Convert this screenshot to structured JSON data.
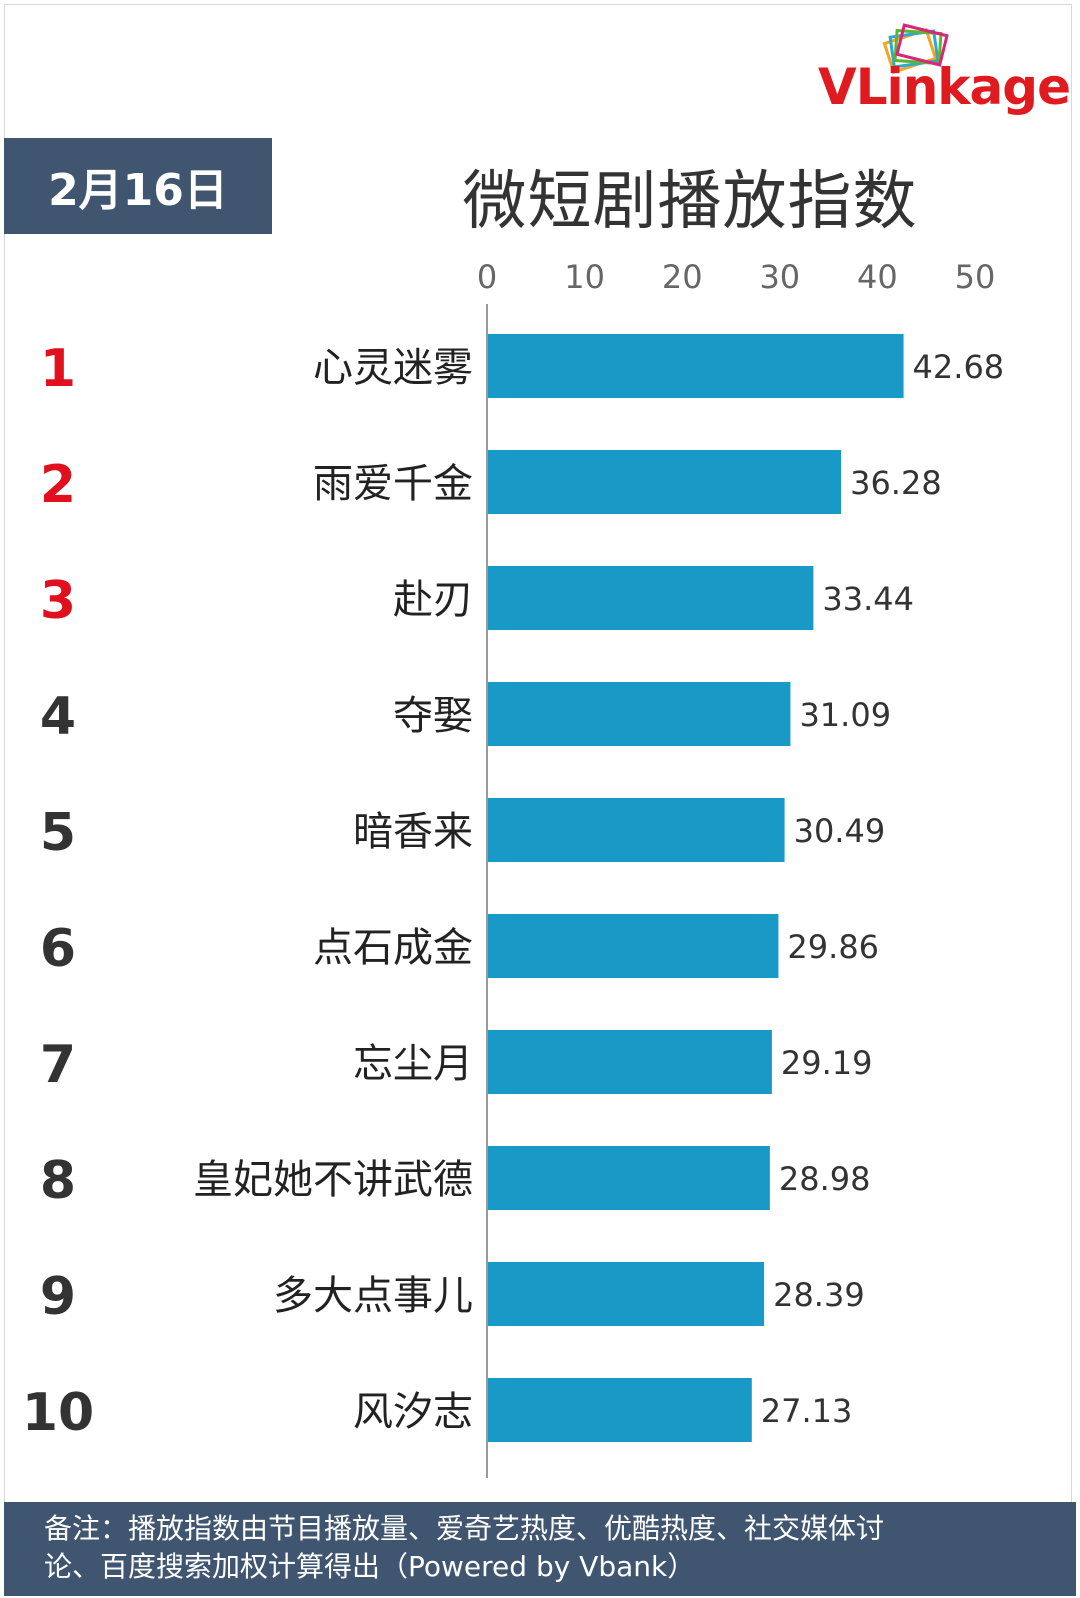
{
  "logo": {
    "text": "VLinkage"
  },
  "date_label": "2月16日",
  "chart_data": {
    "type": "bar",
    "orientation": "horizontal",
    "title": "微短剧播放指数",
    "xlim": [
      0,
      50
    ],
    "x_ticks": [
      "0",
      "10",
      "20",
      "30",
      "40",
      "50"
    ],
    "ranks": [
      "1",
      "2",
      "3",
      "4",
      "5",
      "6",
      "7",
      "8",
      "9",
      "10"
    ],
    "categories": [
      "心灵迷雾",
      "雨爱千金",
      "赴刃",
      "夺娶",
      "暗香来",
      "点石成金",
      "忘尘月",
      "皇妃她不讲武德",
      "多大点事儿",
      "风汐志"
    ],
    "values": [
      42.68,
      36.28,
      33.44,
      31.09,
      30.49,
      29.86,
      29.19,
      28.98,
      28.39,
      27.13
    ],
    "value_labels": [
      "42.68",
      "36.28",
      "33.44",
      "31.09",
      "30.49",
      "29.86",
      "29.19",
      "28.98",
      "28.39",
      "27.13"
    ],
    "colors": {
      "bar": "#1899c6",
      "top_rank": "#e0101e",
      "rank": "#333333",
      "axis": "#999999"
    }
  },
  "footer": {
    "line1": "备注：播放指数由节目播放量、爱奇艺热度、优酷热度、社交媒体讨",
    "line2": "论、百度搜索加权计算得出（Powered by Vbank）"
  }
}
